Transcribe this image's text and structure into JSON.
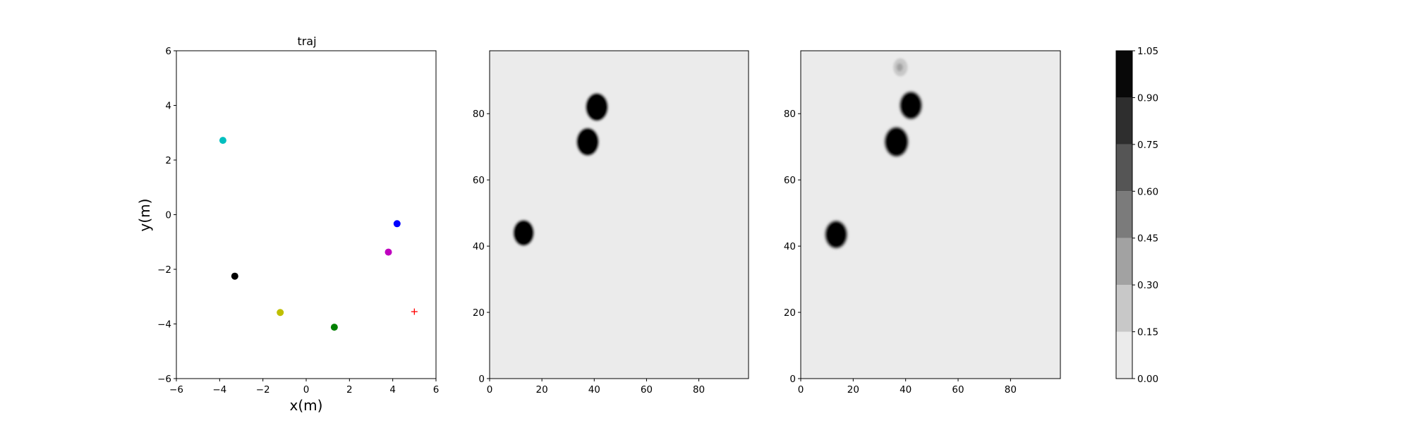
{
  "chart_data": [
    {
      "type": "scatter",
      "title": "traj",
      "xlabel": "x(m)",
      "ylabel": "y(m)",
      "xlim": [
        -6,
        6
      ],
      "ylim": [
        -6,
        6
      ],
      "xticks": [
        "−6",
        "−4",
        "−2",
        "0",
        "2",
        "4",
        "6"
      ],
      "yticks": [
        "−6",
        "−4",
        "−2",
        "0",
        "2",
        "4",
        "6"
      ],
      "grid": false,
      "points": [
        {
          "x": -3.85,
          "y": 2.72,
          "color": "#00bfbf",
          "marker": "circle"
        },
        {
          "x": 4.2,
          "y": -0.33,
          "color": "#0000ff",
          "marker": "circle"
        },
        {
          "x": 3.8,
          "y": -1.37,
          "color": "#bf00bf",
          "marker": "circle"
        },
        {
          "x": -3.3,
          "y": -2.25,
          "color": "#000000",
          "marker": "circle"
        },
        {
          "x": -1.2,
          "y": -3.58,
          "color": "#bfbf00",
          "marker": "circle"
        },
        {
          "x": 1.3,
          "y": -4.12,
          "color": "#008000",
          "marker": "circle"
        },
        {
          "x": 5.0,
          "y": -3.55,
          "color": "#ff0000",
          "marker": "plus"
        }
      ]
    },
    {
      "type": "heatmap",
      "xlim": [
        0,
        99
      ],
      "ylim": [
        0,
        99
      ],
      "xticks": [
        "0",
        "20",
        "40",
        "60",
        "80"
      ],
      "yticks": [
        "0",
        "20",
        "40",
        "60",
        "80"
      ],
      "background": "#ebebeb",
      "blobs": [
        {
          "x": 13,
          "y": 44,
          "radius": 3.7,
          "peak": 1.0
        },
        {
          "x": 37.5,
          "y": 71.5,
          "radius": 4.0,
          "peak": 1.0
        },
        {
          "x": 41,
          "y": 82,
          "radius": 4.0,
          "peak": 1.0
        }
      ]
    },
    {
      "type": "heatmap",
      "xlim": [
        0,
        99
      ],
      "ylim": [
        0,
        99
      ],
      "xticks": [
        "0",
        "20",
        "40",
        "60",
        "80"
      ],
      "yticks": [
        "0",
        "20",
        "40",
        "60",
        "80"
      ],
      "background": "#ebebeb",
      "blobs": [
        {
          "x": 13.5,
          "y": 43.5,
          "radius": 4.0,
          "peak": 1.0
        },
        {
          "x": 36.5,
          "y": 71.5,
          "radius": 4.3,
          "peak": 1.0
        },
        {
          "x": 42,
          "y": 82.5,
          "radius": 4.0,
          "peak": 1.0
        },
        {
          "x": 38,
          "y": 94,
          "radius": 2.7,
          "peak": 0.35
        }
      ]
    }
  ],
  "colorbar": {
    "levels": [
      0.0,
      0.15,
      0.3,
      0.45,
      0.6,
      0.75,
      0.9,
      1.05
    ],
    "labels": [
      "0.00",
      "0.15",
      "0.30",
      "0.45",
      "0.60",
      "0.75",
      "0.90",
      "1.05"
    ],
    "colors": [
      "#ebebeb",
      "#c8c8c8",
      "#a2a2a2",
      "#7b7b7b",
      "#555555",
      "#2e2e2e",
      "#080808"
    ]
  }
}
